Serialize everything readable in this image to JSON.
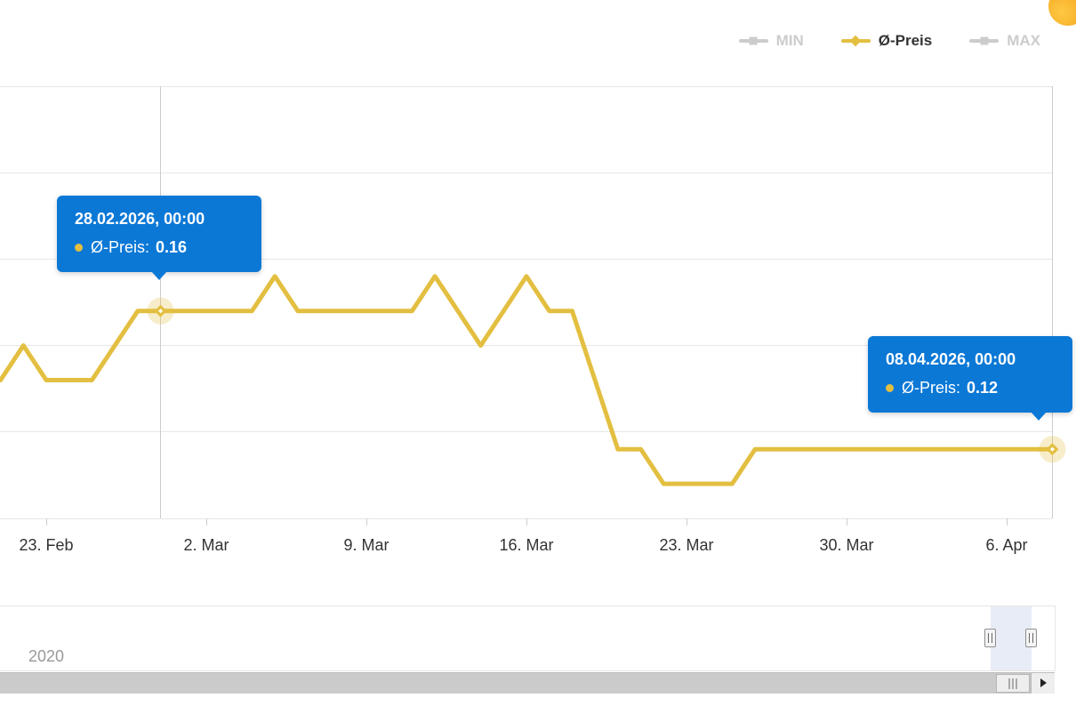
{
  "legend": {
    "items": [
      {
        "label": "MIN",
        "enabled": false
      },
      {
        "label": "Ø-Preis",
        "enabled": true
      },
      {
        "label": "MAX",
        "enabled": false
      }
    ]
  },
  "tooltips": [
    {
      "date_label": "28.02.2026, 00:00",
      "series_label": "Ø-Preis:",
      "value": "0.16",
      "point_date": "2026-02-28",
      "point_value": 0.16
    },
    {
      "date_label": "08.04.2026, 00:00",
      "series_label": "Ø-Preis:",
      "value": "0.12",
      "point_date": "2026-04-08",
      "point_value": 0.12
    }
  ],
  "navigator": {
    "year_label": "2020"
  },
  "colors": {
    "series_gold": "#e3bf41",
    "tooltip_bg": "#0b78d6",
    "disabled_gray": "#cccccc",
    "navigator_selection": "#e8ecf6"
  },
  "chart_data": {
    "type": "line",
    "title": "",
    "xlabel": "",
    "ylabel": "",
    "grid": true,
    "legend_position": "top-right",
    "x_tick_labels": [
      "23. Feb",
      "2. Mar",
      "9. Mar",
      "16. Mar",
      "23. Mar",
      "30. Mar",
      "6. Apr"
    ],
    "x_tick_dates": [
      "2026-02-23",
      "2026-03-02",
      "2026-03-09",
      "2026-03-16",
      "2026-03-23",
      "2026-03-30",
      "2026-04-06"
    ],
    "y_range": [
      0.1,
      0.225
    ],
    "y_ticks": [
      0.1,
      0.125,
      0.15,
      0.175,
      0.2,
      0.225
    ],
    "series": [
      {
        "name": "Ø-Preis",
        "color": "#e3bf41",
        "points": [
          [
            "2026-02-21",
            0.14
          ],
          [
            "2026-02-22",
            0.15
          ],
          [
            "2026-02-23",
            0.14
          ],
          [
            "2026-02-24",
            0.14
          ],
          [
            "2026-02-25",
            0.14
          ],
          [
            "2026-02-26",
            0.15
          ],
          [
            "2026-02-27",
            0.16
          ],
          [
            "2026-02-28",
            0.16
          ],
          [
            "2026-03-01",
            0.16
          ],
          [
            "2026-03-02",
            0.16
          ],
          [
            "2026-03-03",
            0.16
          ],
          [
            "2026-03-04",
            0.16
          ],
          [
            "2026-03-05",
            0.17
          ],
          [
            "2026-03-06",
            0.16
          ],
          [
            "2026-03-07",
            0.16
          ],
          [
            "2026-03-08",
            0.16
          ],
          [
            "2026-03-09",
            0.16
          ],
          [
            "2026-03-10",
            0.16
          ],
          [
            "2026-03-11",
            0.16
          ],
          [
            "2026-03-12",
            0.17
          ],
          [
            "2026-03-13",
            0.16
          ],
          [
            "2026-03-14",
            0.15
          ],
          [
            "2026-03-15",
            0.16
          ],
          [
            "2026-03-16",
            0.17
          ],
          [
            "2026-03-17",
            0.16
          ],
          [
            "2026-03-18",
            0.16
          ],
          [
            "2026-03-19",
            0.14
          ],
          [
            "2026-03-20",
            0.12
          ],
          [
            "2026-03-21",
            0.12
          ],
          [
            "2026-03-22",
            0.11
          ],
          [
            "2026-03-23",
            0.11
          ],
          [
            "2026-03-24",
            0.11
          ],
          [
            "2026-03-25",
            0.11
          ],
          [
            "2026-03-26",
            0.12
          ],
          [
            "2026-03-27",
            0.12
          ],
          [
            "2026-03-28",
            0.12
          ],
          [
            "2026-03-29",
            0.12
          ],
          [
            "2026-03-30",
            0.12
          ],
          [
            "2026-03-31",
            0.12
          ],
          [
            "2026-04-01",
            0.12
          ],
          [
            "2026-04-02",
            0.12
          ],
          [
            "2026-04-03",
            0.12
          ],
          [
            "2026-04-04",
            0.12
          ],
          [
            "2026-04-05",
            0.12
          ],
          [
            "2026-04-06",
            0.12
          ],
          [
            "2026-04-07",
            0.12
          ],
          [
            "2026-04-08",
            0.12
          ]
        ]
      }
    ]
  }
}
